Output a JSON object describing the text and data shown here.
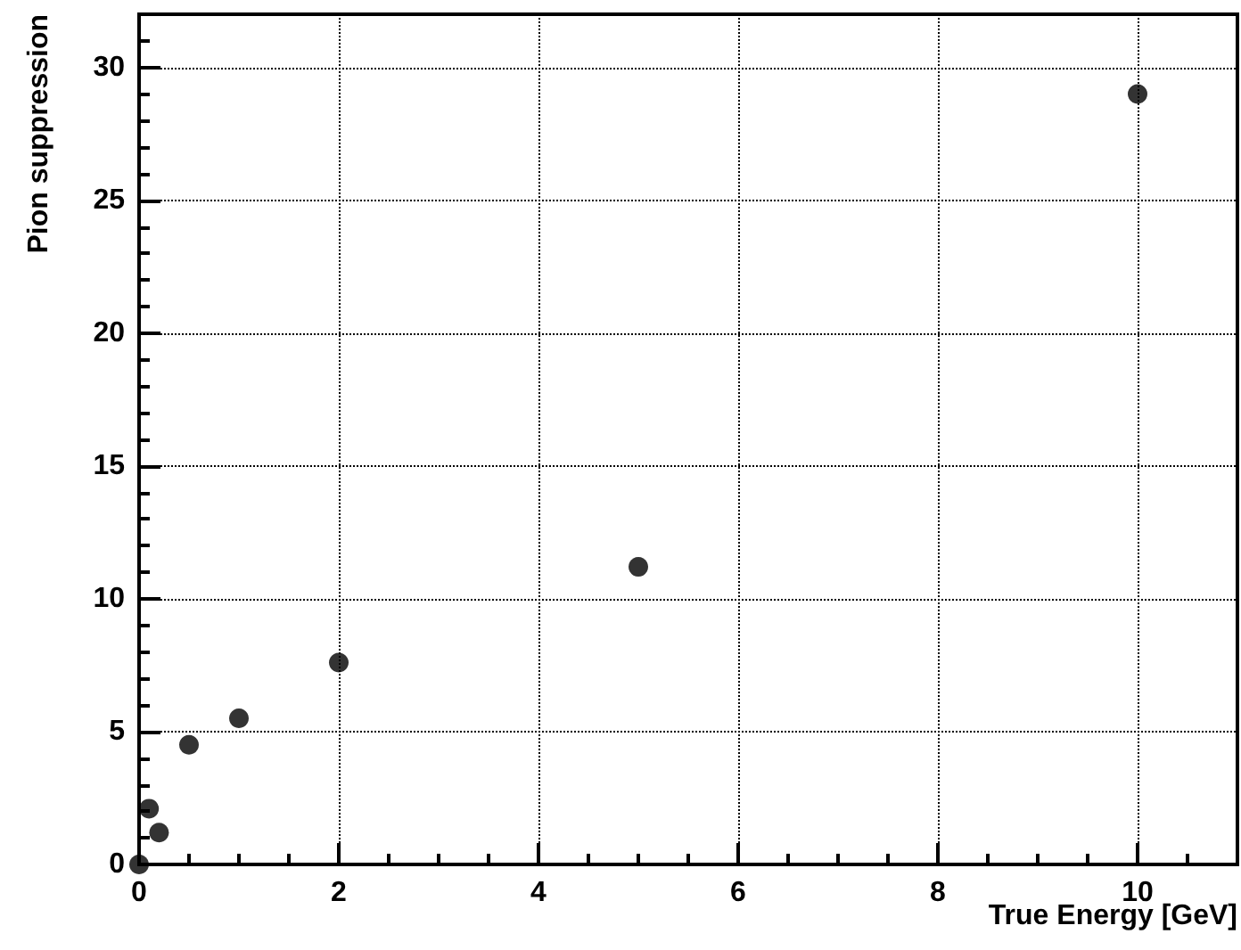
{
  "chart_data": {
    "type": "scatter",
    "xlabel": "True Energy [GeV]",
    "ylabel": "Pion suppression",
    "x": [
      0,
      0.1,
      0.2,
      0.5,
      1,
      2,
      5,
      10
    ],
    "series": [
      {
        "color": "#000000",
        "values": [
          0,
          2.1,
          1.2,
          4.5,
          5.5,
          7.6,
          11.2,
          29
        ]
      }
    ],
    "xlim": [
      0,
      11
    ],
    "xticks": [
      0,
      2,
      4,
      6,
      8,
      10
    ],
    "ylim": [
      0,
      32
    ],
    "yticks": [
      0,
      5,
      10,
      15,
      20,
      25,
      30
    ],
    "grid": true,
    "marker": "circle"
  }
}
